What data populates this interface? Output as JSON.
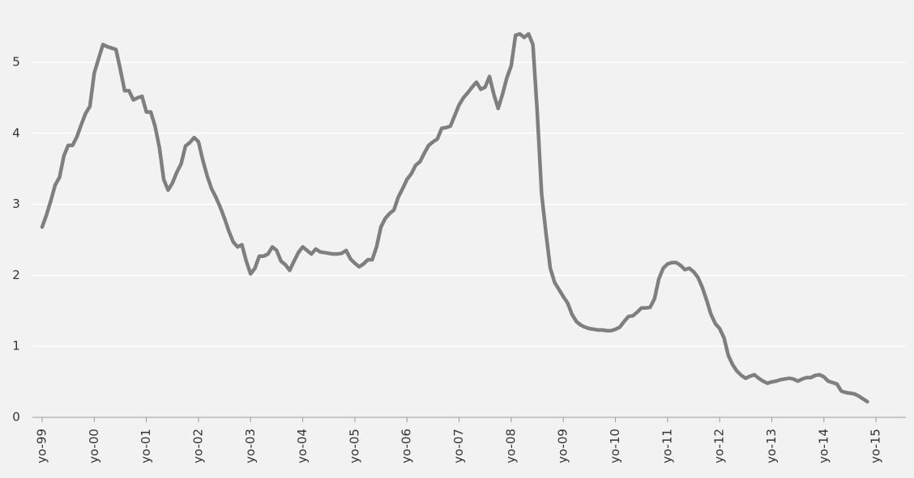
{
  "chart_data": {
    "type": "line",
    "categories": [
      "yo-99",
      null,
      null,
      null,
      null,
      null,
      null,
      null,
      null,
      null,
      null,
      null,
      "yo-00",
      null,
      null,
      null,
      null,
      null,
      null,
      null,
      null,
      null,
      null,
      null,
      "yo-01",
      null,
      null,
      null,
      null,
      null,
      null,
      null,
      null,
      null,
      null,
      null,
      "yo-02",
      null,
      null,
      null,
      null,
      null,
      null,
      null,
      null,
      null,
      null,
      null,
      "yo-03",
      null,
      null,
      null,
      null,
      null,
      null,
      null,
      null,
      null,
      null,
      null,
      "yo-04",
      null,
      null,
      null,
      null,
      null,
      null,
      null,
      null,
      null,
      null,
      null,
      "yo-05",
      null,
      null,
      null,
      null,
      null,
      null,
      null,
      null,
      null,
      null,
      null,
      "yo-06",
      null,
      null,
      null,
      null,
      null,
      null,
      null,
      null,
      null,
      null,
      null,
      "yo-07",
      null,
      null,
      null,
      null,
      null,
      null,
      null,
      null,
      null,
      null,
      null,
      "yo-08",
      null,
      null,
      null,
      null,
      null,
      null,
      null,
      null,
      null,
      null,
      null,
      "yo-09",
      null,
      null,
      null,
      null,
      null,
      null,
      null,
      null,
      null,
      null,
      null,
      "yo-10",
      null,
      null,
      null,
      null,
      null,
      null,
      null,
      null,
      null,
      null,
      null,
      "yo-11",
      null,
      null,
      null,
      null,
      null,
      null,
      null,
      null,
      null,
      null,
      null,
      "yo-12",
      null,
      null,
      null,
      null,
      null,
      null,
      null,
      null,
      null,
      null,
      null,
      "yo-13",
      null,
      null,
      null,
      null,
      null,
      null,
      null,
      null,
      null,
      null,
      null,
      "yo-14",
      null,
      null,
      null,
      null,
      null,
      null,
      null,
      null,
      null,
      null,
      null,
      "yo-15"
    ],
    "values": [
      2.68,
      2.85,
      3.05,
      3.27,
      3.38,
      3.68,
      3.83,
      3.83,
      3.95,
      4.12,
      4.28,
      4.38,
      4.85,
      5.05,
      5.25,
      5.22,
      5.2,
      5.18,
      4.9,
      4.6,
      4.6,
      4.47,
      4.5,
      4.52,
      4.3,
      4.3,
      4.1,
      3.8,
      3.35,
      3.2,
      3.3,
      3.45,
      3.57,
      3.82,
      3.87,
      3.94,
      3.88,
      3.62,
      3.4,
      3.22,
      3.1,
      2.96,
      2.8,
      2.62,
      2.47,
      2.4,
      2.43,
      2.2,
      2.02,
      2.1,
      2.27,
      2.27,
      2.3,
      2.4,
      2.35,
      2.2,
      2.15,
      2.07,
      2.2,
      2.32,
      2.4,
      2.35,
      2.3,
      2.37,
      2.33,
      2.32,
      2.31,
      2.3,
      2.3,
      2.31,
      2.35,
      2.23,
      2.17,
      2.12,
      2.16,
      2.22,
      2.22,
      2.4,
      2.68,
      2.8,
      2.87,
      2.92,
      3.1,
      3.22,
      3.35,
      3.43,
      3.55,
      3.6,
      3.72,
      3.83,
      3.88,
      3.92,
      4.07,
      4.08,
      4.1,
      4.25,
      4.4,
      4.5,
      4.57,
      4.65,
      4.72,
      4.62,
      4.65,
      4.8,
      4.55,
      4.35,
      4.55,
      4.78,
      4.95,
      5.38,
      5.4,
      5.35,
      5.4,
      5.25,
      4.3,
      3.15,
      2.6,
      2.1,
      1.9,
      1.8,
      1.7,
      1.61,
      1.45,
      1.35,
      1.3,
      1.27,
      1.25,
      1.24,
      1.23,
      1.23,
      1.22,
      1.22,
      1.24,
      1.27,
      1.35,
      1.42,
      1.43,
      1.48,
      1.54,
      1.54,
      1.55,
      1.67,
      1.95,
      2.1,
      2.16,
      2.18,
      2.18,
      2.14,
      2.08,
      2.1,
      2.05,
      1.97,
      1.83,
      1.65,
      1.45,
      1.32,
      1.25,
      1.12,
      0.87,
      0.74,
      0.65,
      0.59,
      0.55,
      0.58,
      0.6,
      0.55,
      0.51,
      0.48,
      0.5,
      0.51,
      0.53,
      0.54,
      0.55,
      0.54,
      0.51,
      0.54,
      0.56,
      0.56,
      0.59,
      0.6,
      0.57,
      0.51,
      0.49,
      0.47,
      0.37,
      0.35,
      0.34,
      0.33,
      0.3,
      0.26,
      0.22,
      null,
      null
    ],
    "color": "#7f7f7f",
    "ylim": [
      0,
      6
    ],
    "yticks": [
      0,
      1,
      2,
      3,
      4,
      5
    ],
    "grid": true
  }
}
